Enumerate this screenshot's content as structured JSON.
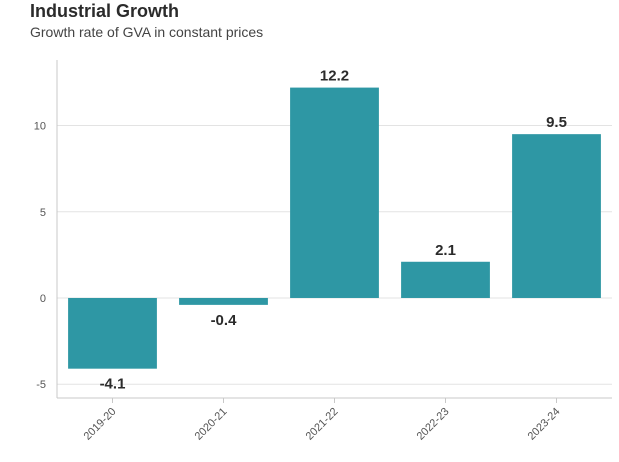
{
  "header": {
    "title": "Industrial Growth",
    "subtitle": "Growth rate of GVA in constant prices"
  },
  "colors": {
    "bar": "#2e97a4",
    "grid": "#e3e3e3",
    "axis": "#c8c8c8"
  },
  "chart_data": {
    "type": "bar",
    "categories": [
      "2019-20",
      "2020-21",
      "2021-22",
      "2022-23",
      "2023-24"
    ],
    "values": [
      -4.1,
      -0.4,
      12.2,
      2.1,
      9.5
    ],
    "data_labels": [
      "-4.1",
      "-0.4",
      "12.2",
      "2.1",
      "9.5"
    ],
    "title": "Industrial Growth",
    "subtitle": "Growth rate of GVA in constant prices",
    "xlabel": "",
    "ylabel": "",
    "y_ticks": [
      -5,
      0,
      5,
      10
    ],
    "ylim": [
      -5.8,
      13.8
    ],
    "grid": true
  }
}
